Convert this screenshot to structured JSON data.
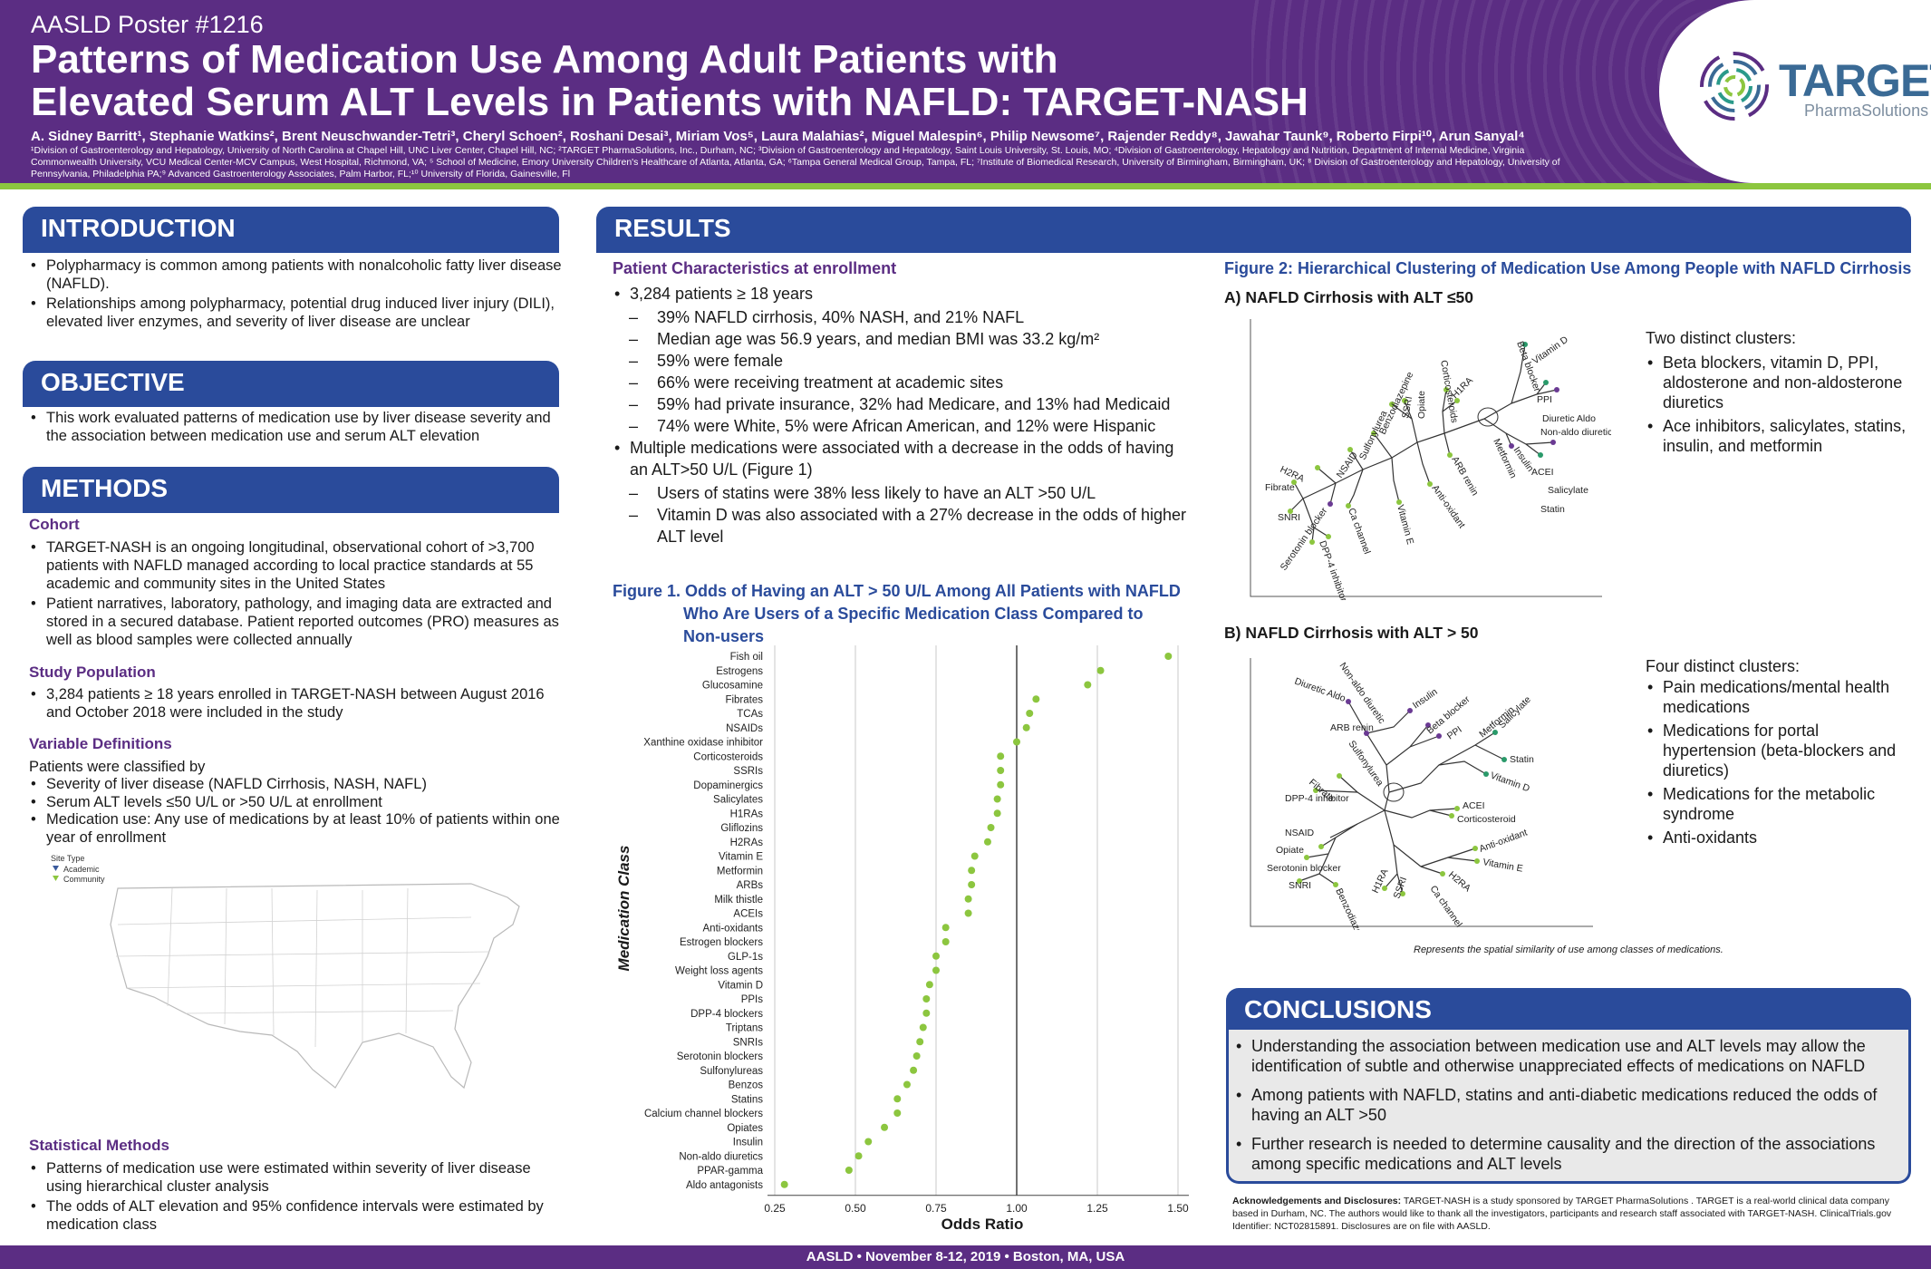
{
  "header": {
    "poster_number": "AASLD Poster #1216",
    "title_line1": "Patterns of Medication Use Among Adult Patients with",
    "title_line2": "Elevated Serum ALT Levels in Patients with NAFLD: TARGET-NASH",
    "authors": "A. Sidney Barritt¹, Stephanie Watkins², Brent Neuschwander-Tetri³, Cheryl Schoen², Roshani Desai³, Miriam Vos⁵, Laura Malahias², Miguel Malespin⁶, Philip Newsome⁷, Rajender Reddy⁸, Jawahar Taunk⁹, Roberto Firpi¹⁰, Arun Sanyal⁴",
    "affiliations": "¹Division of Gastroenterology and Hepatology, University of North Carolina at Chapel Hill, UNC Liver Center, Chapel Hill, NC; ²TARGET PharmaSolutions, Inc., Durham, NC; ³Division of Gastroenterology and Hepatology, Saint Louis University, St. Louis, MO; ⁴Division of Gastroenterology, Hepatology and Nutrition, Department of Internal Medicine, Virginia Commonwealth University, VCU Medical Center-MCV Campus, West Hospital, Richmond, VA; ⁵ School of Medicine, Emory University Children's Healthcare of Atlanta, Atlanta, GA; ⁶Tampa General Medical Group, Tampa, FL; ⁷Institute of Biomedical Research, University of Birmingham, Birmingham, UK; ⁸ Division of Gastroenterology and Hepatology, University of Pennsylvania, Philadelphia PA;⁹ Advanced Gastroenterology Associates, Palm Harbor, FL;¹⁰ University of Florida, Gainesville, Fl",
    "logo_word": "TARGET",
    "logo_sub": "PharmaSolutions"
  },
  "introduction": {
    "heading": "INTRODUCTION",
    "bullets": [
      "Polypharmacy is common among patients with nonalcoholic fatty liver disease (NAFLD).",
      "Relationships among polypharmacy, potential drug induced liver injury (DILI), elevated liver enzymes, and severity of liver disease are unclear"
    ]
  },
  "objective": {
    "heading": "OBJECTIVE",
    "bullets": [
      "This work evaluated patterns of medication use by liver disease severity and the association between medication use and serum ALT elevation"
    ]
  },
  "methods": {
    "heading": "METHODS",
    "cohort_title": "Cohort",
    "cohort_bullets": [
      "TARGET-NASH is an ongoing longitudinal, observational cohort of >3,700 patients with NAFLD managed according to local practice standards at 55 academic and community sites in the United States",
      "Patient narratives, laboratory, pathology, and imaging data are extracted and stored in a secured database. Patient reported outcomes (PRO) measures as well as blood samples were collected annually"
    ],
    "population_title": "Study Population",
    "population_bullets": [
      "3,284 patients ≥ 18 years enrolled in TARGET-NASH between August 2016 and October 2018 were included in the study"
    ],
    "variables_title": "Variable Definitions",
    "variables_intro": "Patients were classified by",
    "variables_bullets": [
      "Severity of liver disease (NAFLD Cirrhosis, NASH, NAFL)",
      "Serum ALT levels ≤50 U/L or >50 U/L at enrollment",
      "Medication use: Any use of medications by at least 10% of patients within one year of enrollment"
    ],
    "map_legend_title": "Site Type",
    "map_legend_academic": "Academic",
    "map_legend_community": "Community",
    "stats_title": "Statistical Methods",
    "stats_bullets": [
      "Patterns of medication use were estimated within severity of liver disease using hierarchical cluster analysis",
      "The odds of ALT elevation and 95% confidence intervals  were estimated by medication class"
    ]
  },
  "results": {
    "heading": "RESULTS",
    "char_title": "Patient Characteristics at enrollment",
    "bullet1": "3,284 patients ≥ 18 years",
    "sub1": [
      "39% NAFLD cirrhosis, 40% NASH, and 21% NAFL",
      "Median age was 56.9 years, and median BMI was 33.2 kg/m²",
      "59% were female",
      "66% were receiving treatment at academic sites",
      "59% had private insurance, 32% had Medicare, and 13% had Medicaid",
      "74% were White, 5% were African American, and 12% were Hispanic"
    ],
    "bullet2": "Multiple medications were associated with a decrease in the odds of having an ALT>50 U/L (Figure 1)",
    "sub2": [
      "Users of statins were 38% less likely to have an ALT >50 U/L",
      "Vitamin D was also associated with a 27% decrease in the odds of higher ALT level"
    ],
    "fig1_label": "Figure 1.",
    "fig1_line1": "Odds of Having an ALT > 50 U/L Among All Patients with NAFLD",
    "fig1_line2": "Who Are Users of a Specific Medication Class Compared to",
    "fig1_line3": "Non-users",
    "fig2_title": "Figure 2:  Hierarchical Clustering of Medication Use Among People with NAFLD Cirrhosis",
    "fig2a_title": "A)  NAFLD Cirrhosis with ALT ≤50",
    "fig2b_title": "B)  NAFLD Cirrhosis with ALT > 50",
    "fig2a_intro": "Two distinct clusters:",
    "fig2a_bullets": [
      "Beta blockers, vitamin D, PPI, aldosterone and non-aldosterone diuretics",
      "Ace inhibitors, salicylates, statins, insulin, and metformin"
    ],
    "fig2b_intro": "Four distinct clusters:",
    "fig2b_bullets": [
      "Pain medications/mental health medications",
      "Medications for portal hypertension (beta-blockers and diuretics)",
      "Medications for the metabolic syndrome",
      "Anti-oxidants"
    ],
    "fig2_caption": "Represents the spatial similarity of use among classes of medications."
  },
  "tree_a_labels": [
    "Beta blocker",
    "Vitamin D",
    "PPI",
    "Diuretic Aldo",
    "Non-aldo diuretic",
    "Corticosteroids",
    "H1RA",
    "Opiate",
    "SSRI",
    "Benzodiazepine",
    "Sulfonylurea",
    "NSAID",
    "H2RA",
    "Fibrate",
    "SNRI",
    "Serotonin blocker",
    "DPP-4 inhibitor",
    "Ca channel",
    "Vitamin E",
    "Anti-oxidant",
    "ARB renin",
    "Metformin",
    "Insulin",
    "Statin",
    "Salicylate",
    "ACEI"
  ],
  "tree_b_labels": [
    "Non-aldo diuretic",
    "Diuretic Aldo",
    "Insulin",
    "Beta blocker",
    "ARB renin",
    "PPI",
    "Metformin",
    "Salicylate",
    "Statin",
    "Vitamin D",
    "Sulfonylurea",
    "Fibrate",
    "DPP-4 inhibitor",
    "ACEI",
    "Corticosteroid",
    "NSAID",
    "Opiate",
    "Serotonin blocker",
    "SNRI",
    "Benzodiazepine",
    "H1RA",
    "SSRI",
    "Ca channel",
    "H2RA",
    "Anti-oxidant",
    "Vitamin E"
  ],
  "chart_data": {
    "type": "scatter",
    "title": "",
    "xlabel": "Odds Ratio",
    "ylabel": "Medication Class",
    "xlim": [
      0.25,
      1.5
    ],
    "xticks": [
      "0.25",
      "0.50",
      "0.75",
      "1.00",
      "1.25",
      "1.50"
    ],
    "xtick_values": [
      0.25,
      0.5,
      0.75,
      1.0,
      1.25,
      1.5
    ],
    "color": "#8cc63f",
    "categories": [
      "Fish oil",
      "Estrogens",
      "Glucosamine",
      "Fibrates",
      "TCAs",
      "NSAIDs",
      "Xanthine oxidase inhibitor",
      "Corticosteroids",
      "SSRIs",
      "Dopaminergics",
      "Salicylates",
      "H1RAs",
      "Gliflozins",
      "H2RAs",
      "Vitamin E",
      "Metformin",
      "ARBs",
      "Milk thistle",
      "ACEIs",
      "Anti-oxidants",
      "Estrogen blockers",
      "GLP-1s",
      "Weight loss agents",
      "Vitamin D",
      "PPIs",
      "DPP-4 blockers",
      "Triptans",
      "SNRIs",
      "Serotonin blockers",
      "Sulfonylureas",
      "Benzos",
      "Statins",
      "Calcium channel blockers",
      "Opiates",
      "Insulin",
      "Non-aldo diuretics",
      "PPAR-gamma",
      "Aldo antagonists"
    ],
    "values": [
      1.47,
      1.26,
      1.22,
      1.06,
      1.04,
      1.03,
      1.0,
      0.95,
      0.95,
      0.95,
      0.94,
      0.94,
      0.92,
      0.91,
      0.87,
      0.86,
      0.86,
      0.85,
      0.85,
      0.78,
      0.78,
      0.75,
      0.75,
      0.73,
      0.72,
      0.72,
      0.71,
      0.7,
      0.69,
      0.68,
      0.66,
      0.63,
      0.63,
      0.59,
      0.54,
      0.51,
      0.48,
      0.28
    ]
  },
  "map": {
    "academic_sites": [
      [
        110,
        748
      ],
      [
        272,
        773
      ],
      [
        300,
        779
      ],
      [
        370,
        741
      ],
      [
        380,
        752
      ],
      [
        403,
        762
      ],
      [
        419,
        770
      ],
      [
        431,
        762
      ],
      [
        436,
        772
      ],
      [
        441,
        778
      ],
      [
        444,
        788
      ],
      [
        454,
        768
      ],
      [
        456,
        793
      ],
      [
        453,
        805
      ],
      [
        397,
        790
      ],
      [
        339,
        790
      ],
      [
        326,
        796
      ],
      [
        261,
        780
      ],
      [
        201,
        795
      ],
      [
        148,
        837
      ],
      [
        276,
        846
      ],
      [
        361,
        830
      ],
      [
        356,
        853
      ],
      [
        358,
        863
      ],
      [
        362,
        877
      ],
      [
        371,
        883
      ],
      [
        373,
        866
      ],
      [
        381,
        883
      ],
      [
        349,
        793
      ],
      [
        388,
        761
      ],
      [
        391,
        755
      ],
      [
        393,
        749
      ],
      [
        395,
        744
      ],
      [
        390,
        773
      ]
    ],
    "community_sites": [
      [
        93,
        799
      ],
      [
        109,
        828
      ],
      [
        252,
        848
      ],
      [
        252,
        864
      ],
      [
        294,
        836
      ],
      [
        336,
        833
      ],
      [
        356,
        870
      ],
      [
        362,
        878
      ],
      [
        371,
        884
      ],
      [
        385,
        774
      ],
      [
        389,
        778
      ],
      [
        390,
        770
      ],
      [
        394,
        769
      ],
      [
        380,
        880
      ]
    ]
  },
  "conclusions": {
    "heading": "CONCLUSIONS",
    "bullets": [
      "Understanding the association between medication use and ALT levels may allow the identification of subtle and otherwise unappreciated effects of medications on NAFLD",
      "Among patients with NAFLD, statins and anti-diabetic medications reduced the odds of having an ALT >50",
      "Further research is needed to determine causality and the direction of the associations among specific medications and ALT levels"
    ]
  },
  "acknowledgements": {
    "label": "Acknowledgements and Disclosures:",
    "text": "TARGET-NASH is a study sponsored by TARGET PharmaSolutions . TARGET is a real-world clinical data company based in Durham, NC. The authors would like to thank all the investigators, participants and research staff associated with TARGET-NASH. ClinicalTrials.gov Identifier: NCT02815891. Disclosures are on file with AASLD."
  },
  "footer": {
    "text": "AASLD  •  November 8-12, 2019  •  Boston, MA, USA"
  },
  "colors": {
    "purple": "#5b2d83",
    "blue": "#2a4b9b",
    "green": "#8cc63f",
    "academic": "#3a5a9c",
    "community": "#8cc63f"
  }
}
